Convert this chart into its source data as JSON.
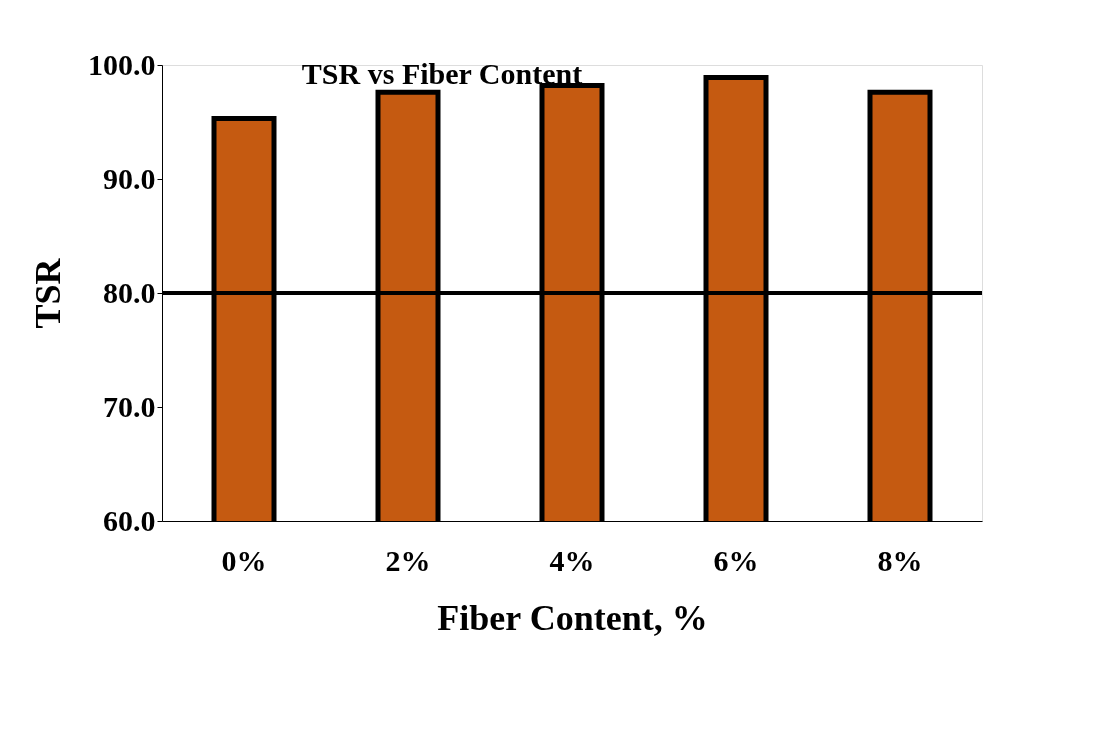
{
  "chart_data": {
    "type": "bar",
    "title": "TSR vs Fiber Content",
    "xlabel": "Fiber Content, %",
    "ylabel": "TSR",
    "categories": [
      "0%",
      "2%",
      "4%",
      "6%",
      "8%"
    ],
    "values": [
      95.3,
      97.6,
      98.2,
      98.9,
      97.6
    ],
    "color": "#c55a11",
    "ylim": [
      60,
      100
    ],
    "yticks": [
      {
        "value": 60,
        "label": "60.0"
      },
      {
        "value": 70,
        "label": "70.0"
      },
      {
        "value": 80,
        "label": "80.0"
      },
      {
        "value": 90,
        "label": "90.0"
      },
      {
        "value": 100,
        "label": "100.0"
      }
    ],
    "ref_lines": [
      {
        "axis": "y",
        "value": 80,
        "color": "#000000"
      }
    ],
    "grid": false
  }
}
